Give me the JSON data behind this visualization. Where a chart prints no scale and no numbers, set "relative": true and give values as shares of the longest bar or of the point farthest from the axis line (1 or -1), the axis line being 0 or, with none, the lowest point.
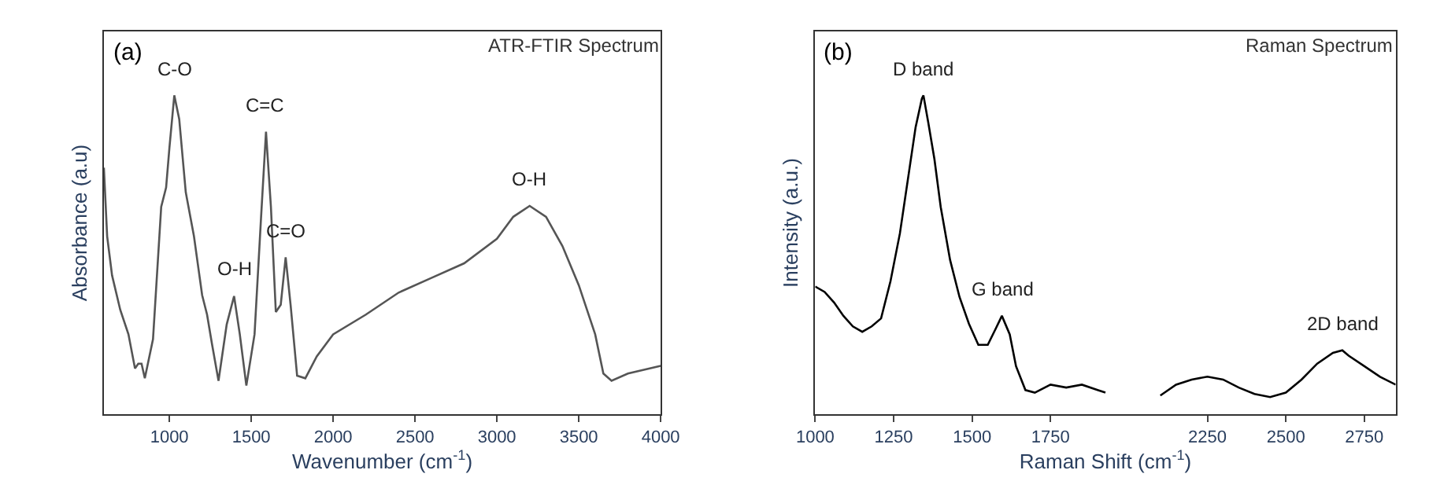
{
  "chart_data": [
    {
      "type": "line",
      "relative": true,
      "title": "ATR-FTIR Spectrum",
      "xlabel": "Wavenumber (cm$^{-1}$)",
      "ylabel": "Absorbance (a.u)",
      "xlim": [
        600,
        4000
      ],
      "xticks": [
        1000,
        1500,
        2000,
        2500,
        3000,
        3500,
        4000
      ],
      "annotations": [
        "(a)",
        {
          "text": "C-O",
          "x": 1030,
          "y": 1
        },
        {
          "text": "C=C",
          "x": 1590,
          "y": 0.886
        },
        {
          "text": "O-H",
          "x": 1395,
          "y": 0.37
        },
        {
          "text": "C=O",
          "x": 1710,
          "y": 0.492
        },
        {
          "text": "O-H",
          "x": 3200,
          "y": 0.653
        }
      ],
      "x": [
        600,
        620,
        650,
        700,
        750,
        790,
        810,
        830,
        850,
        900,
        950,
        980,
        1000,
        1030,
        1060,
        1100,
        1150,
        1200,
        1230,
        1260,
        1300,
        1350,
        1395,
        1430,
        1470,
        1520,
        1560,
        1590,
        1620,
        1650,
        1680,
        1710,
        1740,
        1780,
        1830,
        1900,
        2000,
        2200,
        2400,
        2600,
        2800,
        3000,
        3100,
        3200,
        3300,
        3400,
        3500,
        3600,
        3650,
        3700,
        3800,
        4000
      ],
      "series": [
        {
          "color": "#555555",
          "values": [
            0.773,
            0.558,
            0.435,
            0.327,
            0.25,
            0.143,
            0.158,
            0.158,
            0.112,
            0.235,
            0.65,
            0.711,
            0.834,
            1,
            0.926,
            0.696,
            0.558,
            0.373,
            0.312,
            0.22,
            0.104,
            0.281,
            0.37,
            0.25,
            0.089,
            0.25,
            0.619,
            0.886,
            0.65,
            0.32,
            0.343,
            0.492,
            0.343,
            0.12,
            0.112,
            0.181,
            0.25,
            0.312,
            0.381,
            0.427,
            0.473,
            0.55,
            0.619,
            0.653,
            0.619,
            0.527,
            0.404,
            0.25,
            0.127,
            0.104,
            0.127,
            0.151
          ]
        }
      ]
    },
    {
      "type": "line",
      "relative": true,
      "title": "Raman Spectrum",
      "xlabel": "Raman Shift (cm$^{-1}$)",
      "ylabel": "Intensity (a.u.)",
      "xlim": [
        1000,
        2850
      ],
      "xticks": [
        1000,
        1250,
        1500,
        1750,
        2250,
        2500,
        2750
      ],
      "annotations": [
        "(b)",
        {
          "text": "D band",
          "x": 1345,
          "y": 1
        },
        {
          "text": "G band",
          "x": 1595,
          "y": 0.308
        },
        {
          "text": "2D band",
          "x": 2680,
          "y": 0.2
        }
      ],
      "x": [
        1000,
        1030,
        1060,
        1090,
        1120,
        1150,
        1180,
        1210,
        1240,
        1270,
        1300,
        1320,
        1340,
        1345,
        1360,
        1380,
        1400,
        1430,
        1460,
        1490,
        1520,
        1550,
        1575,
        1595,
        1620,
        1640,
        1670,
        1700,
        1750,
        1800,
        1850,
        1900,
        1925,
        2000,
        2100,
        2150,
        2200,
        2250,
        2300,
        2350,
        2400,
        2450,
        2500,
        2550,
        2600,
        2650,
        2680,
        2700,
        2750,
        2800,
        2850
      ],
      "series": [
        {
          "color": "#000000",
          "values": [
            0.4,
            0.383,
            0.35,
            0.308,
            0.275,
            0.258,
            0.275,
            0.3,
            0.417,
            0.567,
            0.767,
            0.9,
            0.99,
            1,
            0.917,
            0.8,
            0.65,
            0.483,
            0.367,
            0.283,
            0.217,
            0.217,
            0.267,
            0.308,
            0.25,
            0.15,
            0.075,
            0.067,
            0.092,
            0.083,
            0.092,
            0.075,
            0.067,
            null,
            0.058,
            0.092,
            0.108,
            0.117,
            0.108,
            0.083,
            0.063,
            0.053,
            0.067,
            0.108,
            0.158,
            0.192,
            0.2,
            0.183,
            0.15,
            0.117,
            0.092
          ]
        }
      ]
    }
  ]
}
